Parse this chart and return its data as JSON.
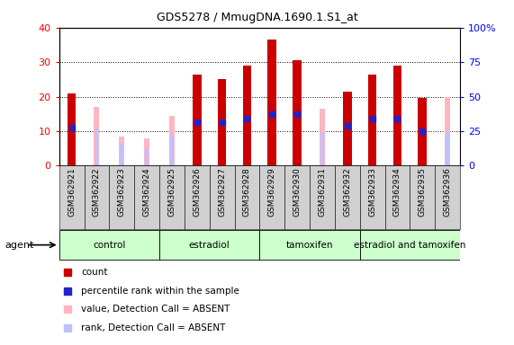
{
  "title": "GDS5278 / MmugDNA.1690.1.S1_at",
  "samples": [
    "GSM362921",
    "GSM362922",
    "GSM362923",
    "GSM362924",
    "GSM362925",
    "GSM362926",
    "GSM362927",
    "GSM362928",
    "GSM362929",
    "GSM362930",
    "GSM362931",
    "GSM362932",
    "GSM362933",
    "GSM362934",
    "GSM362935",
    "GSM362936"
  ],
  "count_values": [
    21.0,
    null,
    null,
    null,
    null,
    26.5,
    25.0,
    29.0,
    36.5,
    30.5,
    null,
    21.5,
    26.5,
    29.0,
    19.5,
    null
  ],
  "rank_values": [
    11.0,
    null,
    null,
    null,
    null,
    12.5,
    12.5,
    13.5,
    15.0,
    15.0,
    null,
    11.5,
    13.5,
    13.5,
    10.0,
    null
  ],
  "absent_value": [
    null,
    17.0,
    8.5,
    8.0,
    14.5,
    null,
    null,
    null,
    null,
    null,
    16.5,
    null,
    null,
    null,
    null,
    20.0
  ],
  "absent_rank": [
    null,
    11.0,
    6.0,
    5.0,
    9.0,
    null,
    null,
    null,
    null,
    null,
    9.5,
    null,
    null,
    null,
    null,
    10.0
  ],
  "ylim": [
    0,
    40
  ],
  "y2lim": [
    0,
    100
  ],
  "yticks": [
    0,
    10,
    20,
    30,
    40
  ],
  "y2ticks": [
    0,
    25,
    50,
    75,
    100
  ],
  "count_color": "#cc0000",
  "rank_color": "#2222cc",
  "absent_value_color": "#ffb6c1",
  "absent_rank_color": "#c0c0ff",
  "group_color_light": "#ccffcc",
  "group_color_medium": "#88ee88",
  "xtick_bg": "#d0d0d0",
  "groups": [
    {
      "name": "control",
      "start": 0,
      "end": 3
    },
    {
      "name": "estradiol",
      "start": 4,
      "end": 7
    },
    {
      "name": "tamoxifen",
      "start": 8,
      "end": 11
    },
    {
      "name": "estradiol and tamoxifen",
      "start": 12,
      "end": 15
    }
  ],
  "legend_items": [
    {
      "color": "#cc0000",
      "label": "count"
    },
    {
      "color": "#2222cc",
      "label": "percentile rank within the sample"
    },
    {
      "color": "#ffb6c1",
      "label": "value, Detection Call = ABSENT"
    },
    {
      "color": "#c0c0ff",
      "label": "rank, Detection Call = ABSENT"
    }
  ]
}
